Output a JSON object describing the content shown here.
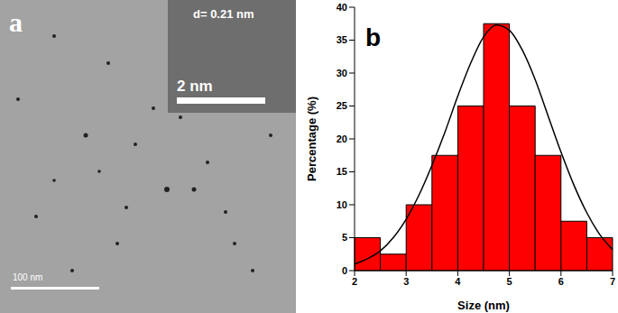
{
  "panel_a": {
    "label": "a",
    "inset_label": "d= 0.21 nm",
    "inset_scale_bar": "2 nm",
    "scale_bar": "100 nm"
  },
  "chart_data": {
    "type": "histogram",
    "panel_label": "b",
    "x_label": "Size (nm)",
    "y_label": "Percentage (%)",
    "bins": [
      2,
      2.5,
      3,
      3.5,
      4,
      4.5,
      5,
      5.5,
      6,
      6.5,
      7
    ],
    "values": [
      5,
      2.5,
      10,
      17.5,
      25,
      37.5,
      25,
      17.5,
      7.5,
      5
    ],
    "color": "#ff0000",
    "xlim": [
      2,
      7
    ],
    "xticks": [
      2,
      3,
      4,
      5,
      6,
      7
    ],
    "ylim": [
      0,
      40
    ],
    "yticks": [
      0,
      5,
      10,
      15,
      20,
      25,
      30,
      35,
      40
    ],
    "grid": false,
    "fit_line": {
      "x": [
        2,
        2.25,
        2.5,
        2.75,
        3,
        3.25,
        3.5,
        3.75,
        4,
        4.25,
        4.5,
        4.75,
        5,
        5.25,
        5.5,
        5.75,
        6,
        6.25,
        6.5,
        6.75,
        7
      ],
      "values": [
        1,
        1.8,
        3,
        5,
        7.8,
        11.5,
        16,
        21,
        26.5,
        31.5,
        35.5,
        37.3,
        36.5,
        33.5,
        29,
        23.5,
        18,
        13,
        8.8,
        5.5,
        3.2
      ],
      "color": "#000000"
    }
  }
}
